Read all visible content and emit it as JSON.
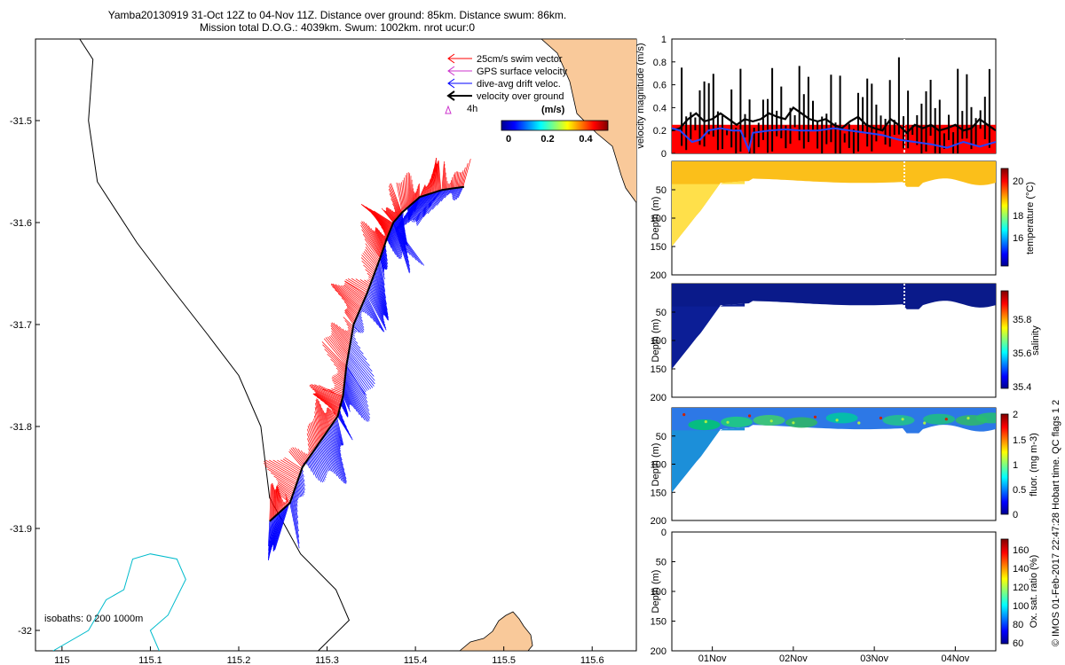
{
  "title": {
    "line1": "Yamba20130919 31-Oct 12Z to 04-Nov 11Z. Distance over ground: 85km. Distance swum: 86km.",
    "line2": "Mission total D.O.G.: 4039km. Swum: 1002km. nrot ucur:0"
  },
  "colors": {
    "swim": "#ff0000",
    "gps": "#cc33cc",
    "drift": "#0000ff",
    "ground": "#000000",
    "land": "#f9c99a",
    "isobath_200": "#000000",
    "isobath_1000": "#00bbcc"
  },
  "side_note": "© IMOS 01-Feb-2017 22:47:28 Hobart time. QC flags 1  2",
  "chart_data": [
    {
      "type": "scatter",
      "name": "map",
      "xlim": [
        114.97,
        115.65
      ],
      "ylim": [
        -32.02,
        -31.42
      ],
      "xticks": [
        "115",
        "115.1",
        "115.2",
        "115.3",
        "115.4",
        "115.5",
        "115.6"
      ],
      "xtick_values": [
        115,
        115.1,
        115.2,
        115.3,
        115.4,
        115.5,
        115.6
      ],
      "yticks": [
        "-31.5",
        "-31.6",
        "-31.7",
        "-31.8",
        "-31.9",
        "-32"
      ],
      "ytick_values": [
        -31.5,
        -31.6,
        -31.7,
        -31.8,
        -31.9,
        -32.0
      ],
      "legend": {
        "placement": "top-right",
        "entries": [
          "25cm/s swim vector",
          "GPS surface velocity",
          "dive-avg drift veloc.",
          "velocity over ground"
        ]
      },
      "vector_label": "4h",
      "colorbar": {
        "label": "(m/s)",
        "ticks": [
          "0",
          "0.2",
          "0.4"
        ],
        "range": [
          0,
          0.45
        ]
      },
      "isobath_label": "isobaths: 0   200  1000m",
      "track": {
        "lon": [
          115.235,
          115.258,
          115.272,
          115.292,
          115.312,
          115.318,
          115.322,
          115.33,
          115.345,
          115.36,
          115.368,
          115.375,
          115.385,
          115.405,
          115.43,
          115.455
        ],
        "lat": [
          -31.893,
          -31.875,
          -31.84,
          -31.815,
          -31.79,
          -31.77,
          -31.74,
          -31.7,
          -31.67,
          -31.635,
          -31.615,
          -31.6,
          -31.59,
          -31.575,
          -31.568,
          -31.565
        ]
      },
      "isobath_200m": {
        "lon": [
          115.02,
          115.035,
          115.03,
          115.04,
          115.085,
          115.12,
          115.165,
          115.2,
          115.225,
          115.235,
          115.27,
          115.31,
          115.325,
          115.29,
          115.265
        ],
        "lat": [
          -31.42,
          -31.44,
          -31.5,
          -31.56,
          -31.62,
          -31.66,
          -31.71,
          -31.75,
          -31.8,
          -31.87,
          -31.925,
          -31.96,
          -31.99,
          -32.02,
          -32.02
        ]
      },
      "isobath_1000m": {
        "lon": [
          114.99,
          115.03,
          115.05,
          115.07,
          115.08,
          115.1,
          115.13,
          115.14,
          115.12,
          115.1,
          115.11
        ],
        "lat": [
          -32.02,
          -32.0,
          -31.97,
          -31.96,
          -31.93,
          -31.925,
          -31.93,
          -31.95,
          -31.985,
          -32.0,
          -32.02
        ]
      }
    },
    {
      "type": "line",
      "name": "velocity",
      "ylabel": "velocity magnitude (m/s)",
      "ylim": [
        0,
        1
      ],
      "yticks": [
        "0",
        "0.2",
        "0.4",
        "0.6",
        "0.8",
        "1"
      ],
      "xlim_days": [
        0,
        4
      ],
      "series": [
        {
          "name": "swim",
          "x_days": [
            0.0,
            4.0
          ],
          "values": [
            0.25,
            0.25
          ]
        },
        {
          "name": "dive-avg drift",
          "x_days": [
            0.0,
            0.1,
            0.25,
            0.35,
            0.45,
            0.6,
            0.75,
            0.85,
            0.95,
            1.0,
            1.2,
            1.4,
            1.6,
            1.8,
            2.0,
            2.2,
            2.4,
            2.6,
            2.8,
            3.0,
            3.2,
            3.4,
            3.6,
            3.8,
            4.0
          ],
          "values": [
            0.22,
            0.2,
            0.1,
            0.12,
            0.2,
            0.22,
            0.2,
            0.2,
            0.03,
            0.18,
            0.2,
            0.21,
            0.2,
            0.2,
            0.22,
            0.2,
            0.18,
            0.16,
            0.12,
            0.1,
            0.08,
            0.05,
            0.1,
            0.06,
            0.1
          ]
        },
        {
          "name": "velocity over ground",
          "x_days": [
            0.0,
            0.1,
            0.2,
            0.3,
            0.4,
            0.5,
            0.6,
            0.7,
            0.8,
            0.9,
            1.0,
            1.1,
            1.2,
            1.3,
            1.4,
            1.5,
            1.6,
            1.7,
            1.8,
            1.9,
            2.0,
            2.1,
            2.2,
            2.3,
            2.4,
            2.5,
            2.6,
            2.7,
            2.8,
            2.9,
            3.0,
            3.1,
            3.2,
            3.3,
            3.4,
            3.5,
            3.6,
            3.7,
            3.8,
            3.9,
            4.0
          ],
          "values": [
            0.2,
            0.22,
            0.3,
            0.35,
            0.28,
            0.3,
            0.35,
            0.3,
            0.25,
            0.3,
            0.28,
            0.3,
            0.35,
            0.32,
            0.3,
            0.4,
            0.35,
            0.3,
            0.28,
            0.3,
            0.25,
            0.22,
            0.28,
            0.32,
            0.25,
            0.22,
            0.2,
            0.3,
            0.25,
            0.18,
            0.25,
            0.22,
            0.25,
            0.2,
            0.22,
            0.25,
            0.2,
            0.22,
            0.3,
            0.25,
            0.2
          ]
        }
      ]
    },
    {
      "type": "heatmap",
      "name": "temperature",
      "ylabel": "Depth (m)",
      "colorbar_label": "temperature (°C)",
      "colorbar_ticks": [
        "16",
        "18",
        "20"
      ],
      "colorbar_range": [
        15,
        21
      ],
      "ylim": [
        200,
        0
      ],
      "yticks": [
        "50",
        "100",
        "150",
        "200"
      ]
    },
    {
      "type": "heatmap",
      "name": "salinity",
      "ylabel": "Depth (m)",
      "colorbar_label": "salinity",
      "colorbar_ticks": [
        "35.4",
        "35.6",
        "35.8"
      ],
      "colorbar_range": [
        35.35,
        35.95
      ],
      "ylim": [
        200,
        0
      ],
      "yticks": [
        "50",
        "100",
        "150",
        "200"
      ]
    },
    {
      "type": "heatmap",
      "name": "fluorescence",
      "ylabel": "Depth (m)",
      "colorbar_label": "fluor. (mg m-3)",
      "colorbar_ticks": [
        "0",
        "0.5",
        "1",
        "1.5",
        "2"
      ],
      "colorbar_range": [
        0,
        2
      ],
      "ylim": [
        200,
        0
      ],
      "yticks": [
        "50",
        "100",
        "150",
        "200"
      ]
    },
    {
      "type": "heatmap",
      "name": "oxygen",
      "ylabel": "Depth (m)",
      "colorbar_label": "Ox. sat. ratio (%)",
      "colorbar_ticks": [
        "60",
        "80",
        "100",
        "120",
        "140",
        "160"
      ],
      "colorbar_range": [
        60,
        170
      ],
      "ylim": [
        200,
        0
      ],
      "yticks": [
        "0",
        "50",
        "100",
        "150",
        "200"
      ],
      "xticks": [
        "01Nov",
        "02Nov",
        "03Nov",
        "04Nov"
      ]
    }
  ]
}
